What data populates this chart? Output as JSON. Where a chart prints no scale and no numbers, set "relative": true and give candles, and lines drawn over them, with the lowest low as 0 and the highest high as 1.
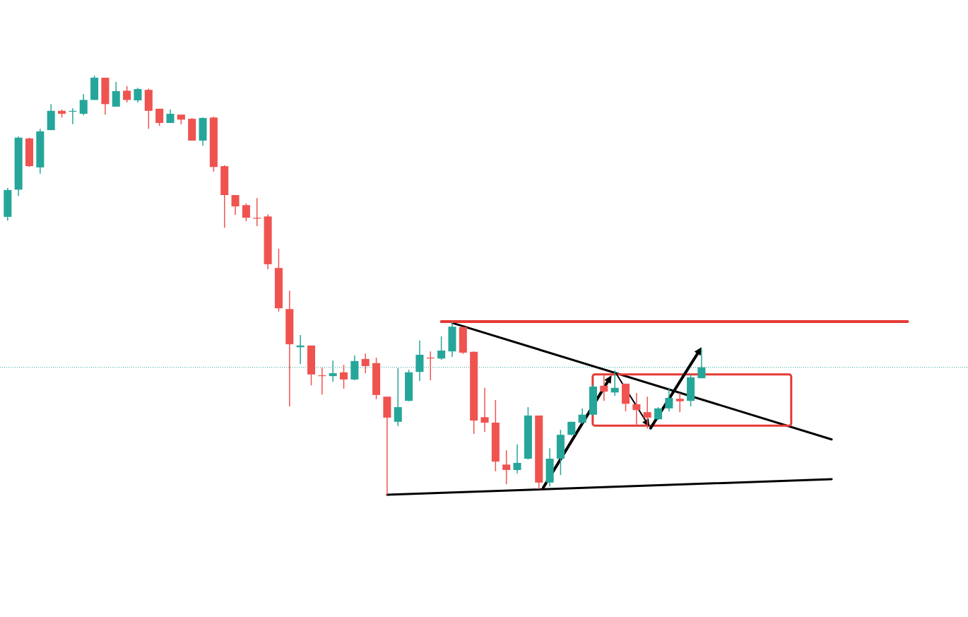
{
  "chart_data": {
    "type": "candlestick",
    "relative": true,
    "categories": [
      null,
      null,
      null,
      null,
      null,
      null,
      null,
      null,
      null,
      null,
      null,
      null,
      null,
      null,
      null,
      null,
      null,
      null,
      null,
      null,
      null,
      null,
      null,
      null,
      null,
      null,
      null,
      null,
      null,
      null,
      null,
      null,
      null,
      null,
      null,
      null,
      null,
      null,
      null,
      null,
      null,
      null,
      null,
      null,
      null,
      null,
      null,
      null,
      null,
      null,
      null,
      null,
      null,
      null,
      null,
      null,
      null,
      null,
      null,
      null,
      null,
      null,
      null,
      null,
      null,
      null,
      null,
      null,
      null,
      null,
      null,
      null,
      null,
      null,
      null,
      null,
      null,
      null,
      null,
      null,
      null,
      null,
      null,
      null,
      null,
      null,
      null,
      null,
      null
    ],
    "ohlc": [
      [
        0.663,
        0.732,
        0.654,
        0.727
      ],
      [
        0.728,
        0.855,
        0.713,
        0.852
      ],
      [
        0.85,
        0.852,
        0.782,
        0.784
      ],
      [
        0.781,
        0.873,
        0.766,
        0.867
      ],
      [
        0.87,
        0.932,
        0.87,
        0.916
      ],
      [
        0.916,
        0.919,
        0.9,
        0.909
      ],
      [
        0.914,
        0.922,
        0.884,
        0.916
      ],
      [
        0.909,
        0.956,
        0.905,
        0.942
      ],
      [
        0.942,
        1.0,
        0.942,
        0.995
      ],
      [
        0.995,
        0.995,
        0.907,
        0.932
      ],
      [
        0.926,
        0.985,
        0.926,
        0.963
      ],
      [
        0.964,
        0.975,
        0.936,
        0.942
      ],
      [
        0.941,
        0.971,
        0.936,
        0.968
      ],
      [
        0.966,
        0.969,
        0.873,
        0.916
      ],
      [
        0.921,
        0.921,
        0.88,
        0.887
      ],
      [
        0.887,
        0.919,
        0.887,
        0.909
      ],
      [
        0.907,
        0.907,
        0.884,
        0.895
      ],
      [
        0.897,
        0.899,
        0.845,
        0.845
      ],
      [
        0.845,
        0.9,
        0.833,
        0.899
      ],
      [
        0.9,
        0.902,
        0.771,
        0.782
      ],
      [
        0.784,
        0.786,
        0.637,
        0.715
      ],
      [
        0.715,
        0.715,
        0.668,
        0.688
      ],
      [
        0.691,
        0.695,
        0.653,
        0.661
      ],
      [
        0.661,
        0.708,
        0.641,
        0.659
      ],
      [
        0.664,
        0.669,
        0.538,
        0.55
      ],
      [
        0.541,
        0.587,
        0.437,
        0.445
      ],
      [
        0.443,
        0.487,
        0.211,
        0.359
      ],
      [
        0.352,
        0.381,
        0.312,
        0.356
      ],
      [
        0.356,
        0.356,
        0.261,
        0.287
      ],
      [
        0.285,
        0.303,
        0.239,
        0.283
      ],
      [
        0.283,
        0.32,
        0.27,
        0.29
      ],
      [
        0.292,
        0.31,
        0.253,
        0.275
      ],
      [
        0.275,
        0.332,
        0.273,
        0.319
      ],
      [
        0.324,
        0.337,
        0.29,
        0.307
      ],
      [
        0.314,
        0.327,
        0.228,
        0.238
      ],
      [
        0.234,
        0.234,
        0.0,
        0.184
      ],
      [
        0.174,
        0.302,
        0.164,
        0.209
      ],
      [
        0.224,
        0.298,
        0.223,
        0.292
      ],
      [
        0.293,
        0.368,
        0.271,
        0.334
      ],
      [
        0.327,
        0.342,
        0.273,
        0.325
      ],
      [
        0.325,
        0.378,
        0.322,
        0.344
      ],
      [
        0.342,
        0.413,
        0.329,
        0.401
      ],
      [
        0.4,
        0.401,
        0.336,
        0.339
      ],
      [
        0.341,
        0.342,
        0.145,
        0.177
      ],
      [
        0.185,
        0.255,
        0.15,
        0.172
      ],
      [
        0.172,
        0.226,
        0.056,
        0.079
      ],
      [
        0.072,
        0.106,
        0.025,
        0.059
      ],
      [
        0.059,
        0.12,
        0.051,
        0.076
      ],
      [
        0.086,
        0.209,
        0.084,
        0.189
      ],
      [
        0.189,
        0.189,
        0.013,
        0.029
      ],
      [
        0.029,
        0.111,
        0.02,
        0.086
      ],
      [
        0.086,
        0.155,
        0.047,
        0.143
      ],
      [
        0.143,
        0.174,
        0.142,
        0.174
      ],
      [
        0.172,
        0.206,
        0.169,
        0.191
      ],
      [
        0.191,
        0.263,
        0.189,
        0.258
      ],
      [
        0.26,
        0.285,
        0.224,
        0.246
      ],
      [
        0.244,
        0.297,
        0.236,
        0.255
      ],
      [
        0.265,
        0.265,
        0.199,
        0.217
      ],
      [
        0.216,
        0.243,
        0.165,
        0.202
      ],
      [
        0.197,
        0.234,
        0.158,
        0.184
      ],
      [
        0.18,
        0.209,
        0.179,
        0.206
      ],
      [
        0.206,
        0.255,
        0.199,
        0.231
      ],
      [
        0.229,
        0.243,
        0.197,
        0.223
      ],
      [
        0.224,
        0.287,
        0.211,
        0.28
      ],
      [
        0.278,
        0.349,
        0.278,
        0.304
      ],
      null,
      null,
      null,
      null,
      null,
      null,
      null,
      null,
      null,
      null,
      null,
      null,
      null,
      null,
      null,
      null,
      null,
      null,
      null,
      null,
      null,
      null,
      null,
      null
    ],
    "series": [
      {
        "type": "line",
        "color": "#000000",
        "values": [
          null,
          null,
          null,
          null,
          null,
          null,
          null,
          null,
          null,
          null,
          null,
          null,
          null,
          null,
          null,
          null,
          null,
          null,
          null,
          null,
          null,
          null,
          null,
          null,
          null,
          null,
          null,
          null,
          null,
          null,
          null,
          null,
          null,
          null,
          null,
          null,
          null,
          null,
          null,
          null,
          null,
          0.41,
          null,
          null,
          null,
          null,
          null,
          null,
          null,
          null,
          null,
          null,
          null,
          null,
          null,
          null,
          null,
          null,
          null,
          null,
          null,
          null,
          null,
          null,
          null,
          null,
          null,
          null,
          null,
          null,
          null,
          null,
          null,
          null,
          null,
          null,
          0.132,
          null,
          null,
          null,
          null,
          null,
          null,
          null,
          null,
          null,
          null,
          null,
          null
        ]
      },
      {
        "type": "line",
        "color": "#000000",
        "values": [
          null,
          null,
          null,
          null,
          null,
          null,
          null,
          null,
          null,
          null,
          null,
          null,
          null,
          null,
          null,
          null,
          null,
          null,
          null,
          null,
          null,
          null,
          null,
          null,
          null,
          null,
          null,
          null,
          null,
          null,
          null,
          null,
          null,
          null,
          null,
          0.0,
          null,
          null,
          null,
          null,
          null,
          null,
          null,
          null,
          null,
          null,
          null,
          null,
          null,
          null,
          null,
          null,
          null,
          null,
          null,
          null,
          null,
          null,
          null,
          null,
          null,
          null,
          null,
          null,
          null,
          null,
          null,
          null,
          null,
          null,
          null,
          null,
          null,
          null,
          null,
          null,
          0.037,
          null,
          null,
          null,
          null,
          null,
          null,
          null,
          null,
          null,
          null,
          null,
          null
        ]
      },
      {
        "type": "line",
        "color": "#e53935",
        "values": [
          null,
          null,
          null,
          null,
          null,
          null,
          null,
          null,
          null,
          null,
          null,
          null,
          null,
          null,
          null,
          null,
          null,
          null,
          null,
          null,
          null,
          null,
          null,
          null,
          null,
          null,
          null,
          null,
          null,
          null,
          null,
          null,
          null,
          null,
          null,
          null,
          null,
          null,
          null,
          null,
          0.413,
          null,
          null,
          null,
          null,
          null,
          null,
          null,
          null,
          null,
          null,
          null,
          null,
          null,
          null,
          null,
          null,
          null,
          null,
          null,
          null,
          null,
          null,
          null,
          null,
          null,
          null,
          null,
          null,
          null,
          null,
          null,
          null,
          null,
          null,
          null,
          null,
          null,
          null,
          null,
          null,
          null,
          null,
          0.413,
          null,
          null,
          null,
          null,
          null
        ]
      }
    ],
    "ref_lines": [
      {
        "axis": "y",
        "value": 0.304,
        "color": "#26a69a",
        "line_style": "dotted"
      }
    ]
  }
}
